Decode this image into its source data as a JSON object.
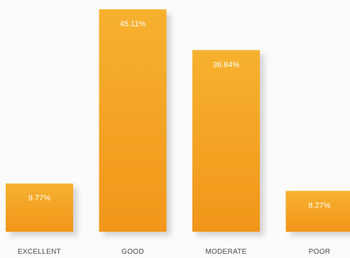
{
  "chart_data": {
    "type": "bar",
    "categories": [
      "EXCELLENT",
      "GOOD",
      "MODERATE",
      "POOR"
    ],
    "values": [
      9.77,
      45.11,
      36.84,
      8.27
    ],
    "value_labels": [
      "9.77%",
      "45.11%",
      "36.84%",
      "8.27%"
    ],
    "ylim": [
      0,
      47
    ],
    "grid": false,
    "legend": "none",
    "colors": {
      "bar_top": "#f6b12e",
      "bar_bottom": "#f2961a",
      "shadow": "#8a8a8a",
      "label_text": "#ffffff",
      "category_text": "#4a4a4a"
    }
  }
}
